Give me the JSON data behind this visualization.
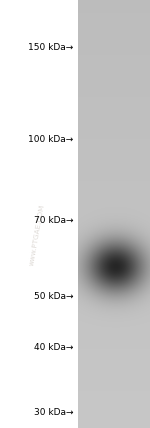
{
  "background_color": "#ffffff",
  "markers": [
    {
      "label": "150 kDa→",
      "kda": 150
    },
    {
      "label": "100 kDa→",
      "kda": 100
    },
    {
      "label": "70 kDa→",
      "kda": 70
    },
    {
      "label": "50 kDa→",
      "kda": 50
    },
    {
      "label": "40 kDa→",
      "kda": 40
    },
    {
      "label": "30 kDa→",
      "kda": 30
    }
  ],
  "band_kda": 57,
  "log_min": 28,
  "log_max": 185,
  "watermark_text": "www.PTGAE.COM",
  "watermark_color": "#c0b8b0",
  "watermark_alpha": 0.5,
  "marker_fontsize": 6.5,
  "fig_width": 1.5,
  "fig_height": 4.28,
  "dpi": 100
}
